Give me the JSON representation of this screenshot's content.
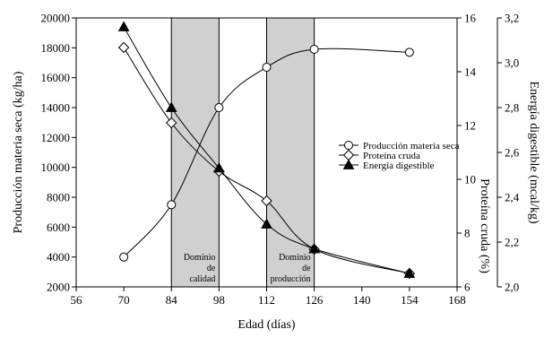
{
  "chart_data": {
    "type": "line",
    "xlabel": "Edad (días)",
    "ylabel_left": "Producción materia seca (kg/ha)",
    "ylabel_right1": "Proteína cruda (%)",
    "ylabel_right2": "Energía digestible (mcal/kg)",
    "x_ticks": [
      56,
      70,
      84,
      98,
      112,
      126,
      140,
      154,
      168
    ],
    "y_left_ticks": [
      2000,
      4000,
      6000,
      8000,
      10000,
      12000,
      14000,
      16000,
      18000,
      20000
    ],
    "y_right1_ticks": [
      6,
      8,
      10,
      12,
      14,
      16
    ],
    "y_right2_ticks": [
      "2,0",
      "2,2",
      "2,4",
      "2,6",
      "2,8",
      "3,0",
      "3,2"
    ],
    "xlim": [
      56,
      168
    ],
    "ylim_left": [
      2000,
      20000
    ],
    "ylim_right1": [
      6,
      16
    ],
    "ylim_right2": [
      2.0,
      3.2
    ],
    "series": [
      {
        "name": "Producción materia seca",
        "axis": "left",
        "marker": "circle-open",
        "x": [
          70,
          84,
          98,
          112,
          126,
          154
        ],
        "y": [
          4000,
          7500,
          14000,
          16700,
          17900,
          17700
        ]
      },
      {
        "name": "Proteína cruda",
        "axis": "right1",
        "marker": "diamond-open",
        "x": [
          70,
          84,
          98,
          112,
          126,
          154
        ],
        "y": [
          14.9,
          12.1,
          10.3,
          9.2,
          7.4,
          6.5
        ]
      },
      {
        "name": "Energía digestible",
        "axis": "right2",
        "marker": "triangle-filled",
        "x": [
          70,
          84,
          98,
          112,
          126,
          154
        ],
        "y": [
          3.16,
          2.8,
          2.53,
          2.28,
          2.17,
          2.06
        ]
      }
    ],
    "bands": [
      {
        "x0": 84,
        "x1": 98,
        "label": [
          "Dominio",
          "de",
          "calidad"
        ]
      },
      {
        "x0": 112,
        "x1": 126,
        "label": [
          "Dominio",
          "de",
          "producción"
        ]
      }
    ],
    "legend_position": "right-center",
    "grid": false,
    "colors": {
      "band_fill": "#d0d0d0",
      "line": "#000000"
    }
  }
}
